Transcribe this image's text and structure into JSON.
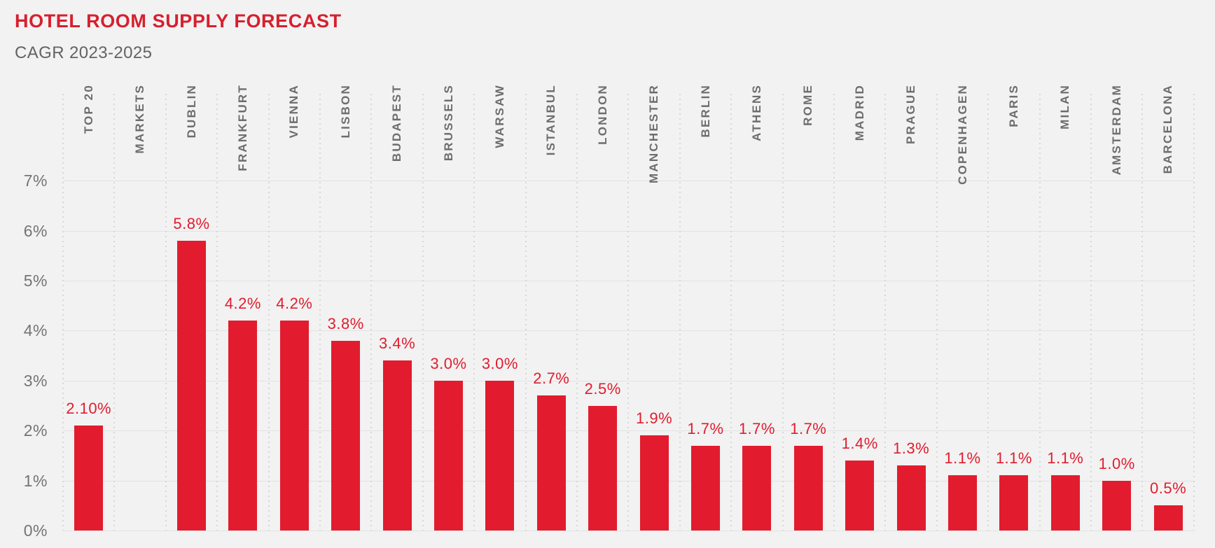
{
  "header": {
    "title": "HOTEL ROOM SUPPLY FORECAST",
    "subtitle": "CAGR 2023-2025"
  },
  "colors": {
    "background": "#f2f2f2",
    "title_red": "#d6202e",
    "bar_red": "#e21c2e",
    "value_label_red": "#e11c2e",
    "axis_label_gray": "#747474",
    "category_label_gray": "#6d6d6d",
    "h_gridline": "#e2e2e2",
    "v_dotted_gridline": "#d7d7d7"
  },
  "chart_data": {
    "type": "bar",
    "title": "HOTEL ROOM SUPPLY FORECAST",
    "subtitle": "CAGR 2023-2025",
    "categories": [
      "TOP 20",
      "MARKETS",
      "DUBLIN",
      "FRANKFURT",
      "VIENNA",
      "LISBON",
      "BUDAPEST",
      "BRUSSELS",
      "WARSAW",
      "ISTANBUL",
      "LONDON",
      "MANCHESTER",
      "BERLIN",
      "ATHENS",
      "ROME",
      "MADRID",
      "PRAGUE",
      "COPENHAGEN",
      "PARIS",
      "MILAN",
      "AMSTERDAM",
      "BARCELONA"
    ],
    "values": [
      2.1,
      null,
      5.8,
      4.2,
      4.2,
      3.8,
      3.4,
      3.0,
      3.0,
      2.7,
      2.5,
      1.9,
      1.7,
      1.7,
      1.7,
      1.4,
      1.3,
      1.1,
      1.1,
      1.1,
      1.0,
      0.5
    ],
    "value_labels": [
      "2.10%",
      null,
      "5.8%",
      "4.2%",
      "4.2%",
      "3.8%",
      "3.4%",
      "3.0%",
      "3.0%",
      "2.7%",
      "2.5%",
      "1.9%",
      "1.7%",
      "1.7%",
      "1.7%",
      "1.4%",
      "1.3%",
      "1.1%",
      "1.1%",
      "1.1%",
      "1.0%",
      "0.5%"
    ],
    "unit": "%",
    "xlabel": "",
    "ylabel": "",
    "y_tick_labels": [
      "0%",
      "1%",
      "2%",
      "3%",
      "4%",
      "5%",
      "6%",
      "7%"
    ],
    "ylim": [
      0,
      7
    ],
    "x_label_rotation": "vertical-bottom-to-top",
    "grid": {
      "horizontal": "solid",
      "vertical": "dotted"
    },
    "legend": "none"
  }
}
